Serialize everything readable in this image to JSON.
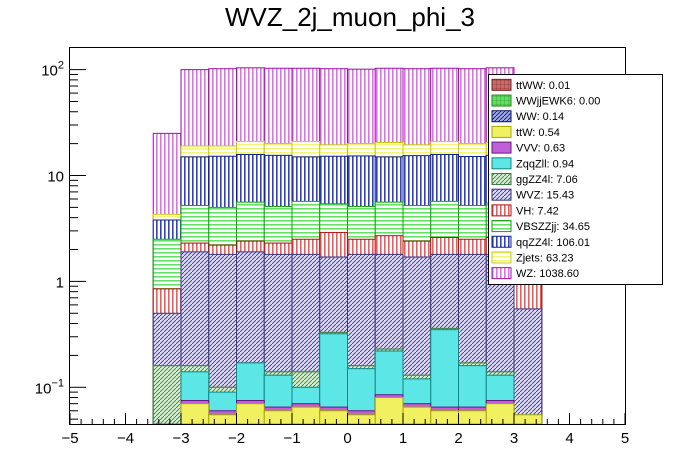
{
  "chart_data": {
    "type": "bar",
    "stacked": true,
    "title": "WVZ_2j_muon_phi_3",
    "xlabel": "",
    "ylabel": "",
    "yscale": "log",
    "xlim": [
      -5,
      5
    ],
    "ylim": [
      0.045,
      160
    ],
    "x_ticks": [
      "−5",
      "−4",
      "−3",
      "−2",
      "−1",
      "0",
      "1",
      "2",
      "3",
      "4",
      "5"
    ],
    "y_ticks": [
      {
        "value": 0.1,
        "base": "10",
        "exp": "−1"
      },
      {
        "value": 1,
        "label": "1"
      },
      {
        "value": 10,
        "label": "10"
      },
      {
        "value": 100,
        "base": "10",
        "exp": "2"
      }
    ],
    "bin_edges": [
      -3.5,
      -3.0,
      -2.5,
      -2.0,
      -1.5,
      -1.0,
      -0.5,
      0.0,
      0.5,
      1.0,
      1.5,
      2.0,
      2.5,
      3.0,
      3.5
    ],
    "stack_tops": [
      {
        "name": "ttW: 0.54",
        "values": [
          0.005,
          0.07,
          0.055,
          0.07,
          0.06,
          0.065,
          0.06,
          0.055,
          0.08,
          0.065,
          0.06,
          0.06,
          0.07,
          0.055
        ]
      },
      {
        "name": "VVV: 0.63",
        "values": [
          0.005,
          0.075,
          0.06,
          0.075,
          0.065,
          0.07,
          0.065,
          0.06,
          0.085,
          0.07,
          0.065,
          0.065,
          0.075,
          0.006
        ]
      },
      {
        "name": "ZqqZll: 0.94",
        "values": [
          0.005,
          0.14,
          0.09,
          0.17,
          0.13,
          0.1,
          0.32,
          0.15,
          0.22,
          0.12,
          0.35,
          0.16,
          0.13,
          0.05
        ]
      },
      {
        "name": "ggZZ4l: 7.06",
        "values": [
          0.16,
          0.16,
          0.1,
          0.17,
          0.14,
          0.14,
          0.33,
          0.16,
          0.23,
          0.13,
          0.36,
          0.17,
          0.14,
          0.05
        ]
      },
      {
        "name": "WVZ: 15.43",
        "values": [
          0.5,
          1.9,
          1.8,
          1.9,
          1.8,
          1.8,
          1.7,
          1.8,
          1.8,
          1.7,
          1.8,
          1.8,
          1.8,
          0.55
        ]
      },
      {
        "name": "VH: 7.42",
        "values": [
          0.85,
          2.3,
          2.2,
          2.4,
          2.3,
          2.5,
          2.9,
          2.5,
          2.7,
          2.4,
          2.6,
          2.5,
          2.6,
          1.0
        ]
      },
      {
        "name": "VBSZZjj: 34.65",
        "values": [
          2.5,
          5.2,
          5.0,
          5.6,
          5.1,
          5.7,
          5.4,
          5.1,
          5.6,
          5.2,
          5.7,
          5.2,
          5.5,
          2.6
        ]
      },
      {
        "name": "qqZZ4l: 106.01",
        "values": [
          3.8,
          15.0,
          15.2,
          15.8,
          15.5,
          15.0,
          15.2,
          15.3,
          15.0,
          15.4,
          15.8,
          15.1,
          15.5,
          3.9
        ]
      },
      {
        "name": "Zjets: 63.23",
        "values": [
          4.3,
          19.0,
          19.0,
          21.0,
          20.0,
          21.0,
          19.5,
          20.0,
          20.5,
          19.5,
          21.0,
          20.0,
          20.5,
          4.6
        ]
      },
      {
        "name": "WZ: 1038.60",
        "values": [
          25.0,
          100.0,
          102.0,
          104.0,
          103.0,
          103.0,
          102.0,
          101.0,
          103.0,
          102.0,
          103.0,
          102.0,
          104.0,
          26.0
        ]
      }
    ],
    "legend": {
      "placement": "top-right",
      "entries": [
        {
          "label": "ttWW: 0.01",
          "fill": "#c76b6b",
          "stroke": "#7a1e1e",
          "pattern": "plaid"
        },
        {
          "label": "WWjjEWK6: 0.00",
          "fill": "#66dd66",
          "stroke": "#1b8a1b",
          "pattern": "plaid"
        },
        {
          "label": "WW: 0.14",
          "fill": "#2b3fb8",
          "stroke": "#0a1570",
          "pattern": "hatch"
        },
        {
          "label": "ttW: 0.54",
          "fill": "#f0f060",
          "stroke": "#a6a600",
          "pattern": "solid"
        },
        {
          "label": "VVV: 0.63",
          "fill": "#c060d8",
          "stroke": "#6a1680",
          "pattern": "solid"
        },
        {
          "label": "ZqqZll: 0.94",
          "fill": "#5de6e6",
          "stroke": "#128585",
          "pattern": "solid"
        },
        {
          "label": "ggZZ4l: 7.06",
          "fill": "#a8d8a0",
          "stroke": "#3d7a3d",
          "pattern": "hatch"
        },
        {
          "label": "WVZ: 15.43",
          "fill": "#b5b0d8",
          "stroke": "#3a3580",
          "pattern": "hatch"
        },
        {
          "label": "VH: 7.42",
          "fill": "#ef5a5a",
          "stroke": "#b01010",
          "pattern": "vlines"
        },
        {
          "label": "VBSZZjj: 34.65",
          "fill": "#66e066",
          "stroke": "#15a015",
          "pattern": "hlines"
        },
        {
          "label": "qqZZ4l: 106.01",
          "fill": "#3040c8",
          "stroke": "#10208a",
          "pattern": "vlines"
        },
        {
          "label": "Zjets: 63.23",
          "fill": "#f5f57a",
          "stroke": "#c8c810",
          "pattern": "hlines"
        },
        {
          "label": "WZ: 1038.60",
          "fill": "#e070e8",
          "stroke": "#a010a8",
          "pattern": "vlines"
        }
      ]
    }
  }
}
